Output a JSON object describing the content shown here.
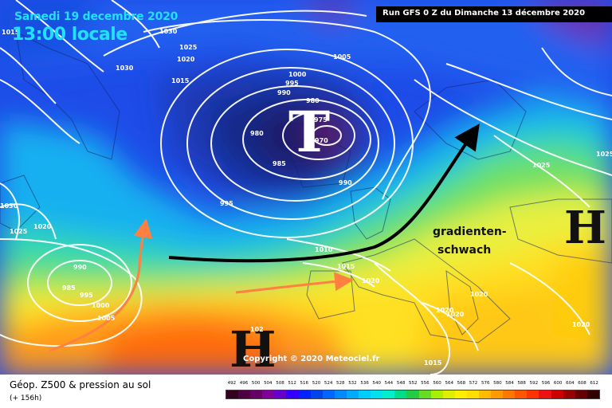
{
  "header": {
    "date": "Samedi 19 decembre 2020",
    "time": "13:00 locale",
    "run": "Run GFS 0 Z du Dimanche 13 décembre 2020"
  },
  "systems": {
    "low_symbol": "T",
    "high_east": "H",
    "high_southwest": "H"
  },
  "annotation": {
    "line1": "gradienten-",
    "line2": "schwach"
  },
  "isobar_labels": [
    {
      "text": "1015"
    },
    {
      "text": "1030"
    },
    {
      "text": "1025"
    },
    {
      "text": "1020"
    },
    {
      "text": "1030"
    },
    {
      "text": "1015"
    },
    {
      "text": "1005"
    },
    {
      "text": "1000"
    },
    {
      "text": "995"
    },
    {
      "text": "990"
    },
    {
      "text": "980"
    },
    {
      "text": "975"
    },
    {
      "text": "970"
    },
    {
      "text": "980"
    },
    {
      "text": "985"
    },
    {
      "text": "990"
    },
    {
      "text": "995"
    },
    {
      "text": "1030"
    },
    {
      "text": "1025"
    },
    {
      "text": "1020"
    },
    {
      "text": "990"
    },
    {
      "text": "985"
    },
    {
      "text": "995"
    },
    {
      "text": "1000"
    },
    {
      "text": "1005"
    },
    {
      "text": "1010"
    },
    {
      "text": "1015"
    },
    {
      "text": "1020"
    },
    {
      "text": "1025"
    },
    {
      "text": "1020"
    },
    {
      "text": "1020"
    },
    {
      "text": "1020"
    },
    {
      "text": "1015"
    },
    {
      "text": "1025"
    },
    {
      "text": "1020"
    },
    {
      "text": "102"
    }
  ],
  "copyright": "Copyright © 2020 Meteociel.fr",
  "legend": {
    "title": "Géop. Z500 & pression au sol",
    "subtitle": "(+ 156h)",
    "scale_values": [
      "492",
      "496",
      "500",
      "504",
      "508",
      "512",
      "516",
      "520",
      "524",
      "528",
      "532",
      "536",
      "540",
      "544",
      "548",
      "552",
      "556",
      "560",
      "564",
      "568",
      "572",
      "576",
      "580",
      "584",
      "588",
      "592",
      "596",
      "600",
      "604",
      "608",
      "612"
    ],
    "scale_colors": [
      "#33001f",
      "#4d0040",
      "#660066",
      "#800099",
      "#6600cc",
      "#3300ff",
      "#0022ff",
      "#0044ee",
      "#0066ff",
      "#0088ff",
      "#00aaff",
      "#00ccff",
      "#00e0ee",
      "#00eecc",
      "#00dd88",
      "#22cc44",
      "#66dd22",
      "#aaee00",
      "#ddee00",
      "#ffee00",
      "#ffdd00",
      "#ffbb00",
      "#ff9900",
      "#ff7700",
      "#ff5500",
      "#ff3300",
      "#ee1111",
      "#cc0000",
      "#990000",
      "#660000",
      "#330000"
    ]
  },
  "colors": {
    "header_text": "#22e0ff",
    "isobar": "#ffffff",
    "arrows": "#ff8040",
    "jet": "#000000"
  }
}
